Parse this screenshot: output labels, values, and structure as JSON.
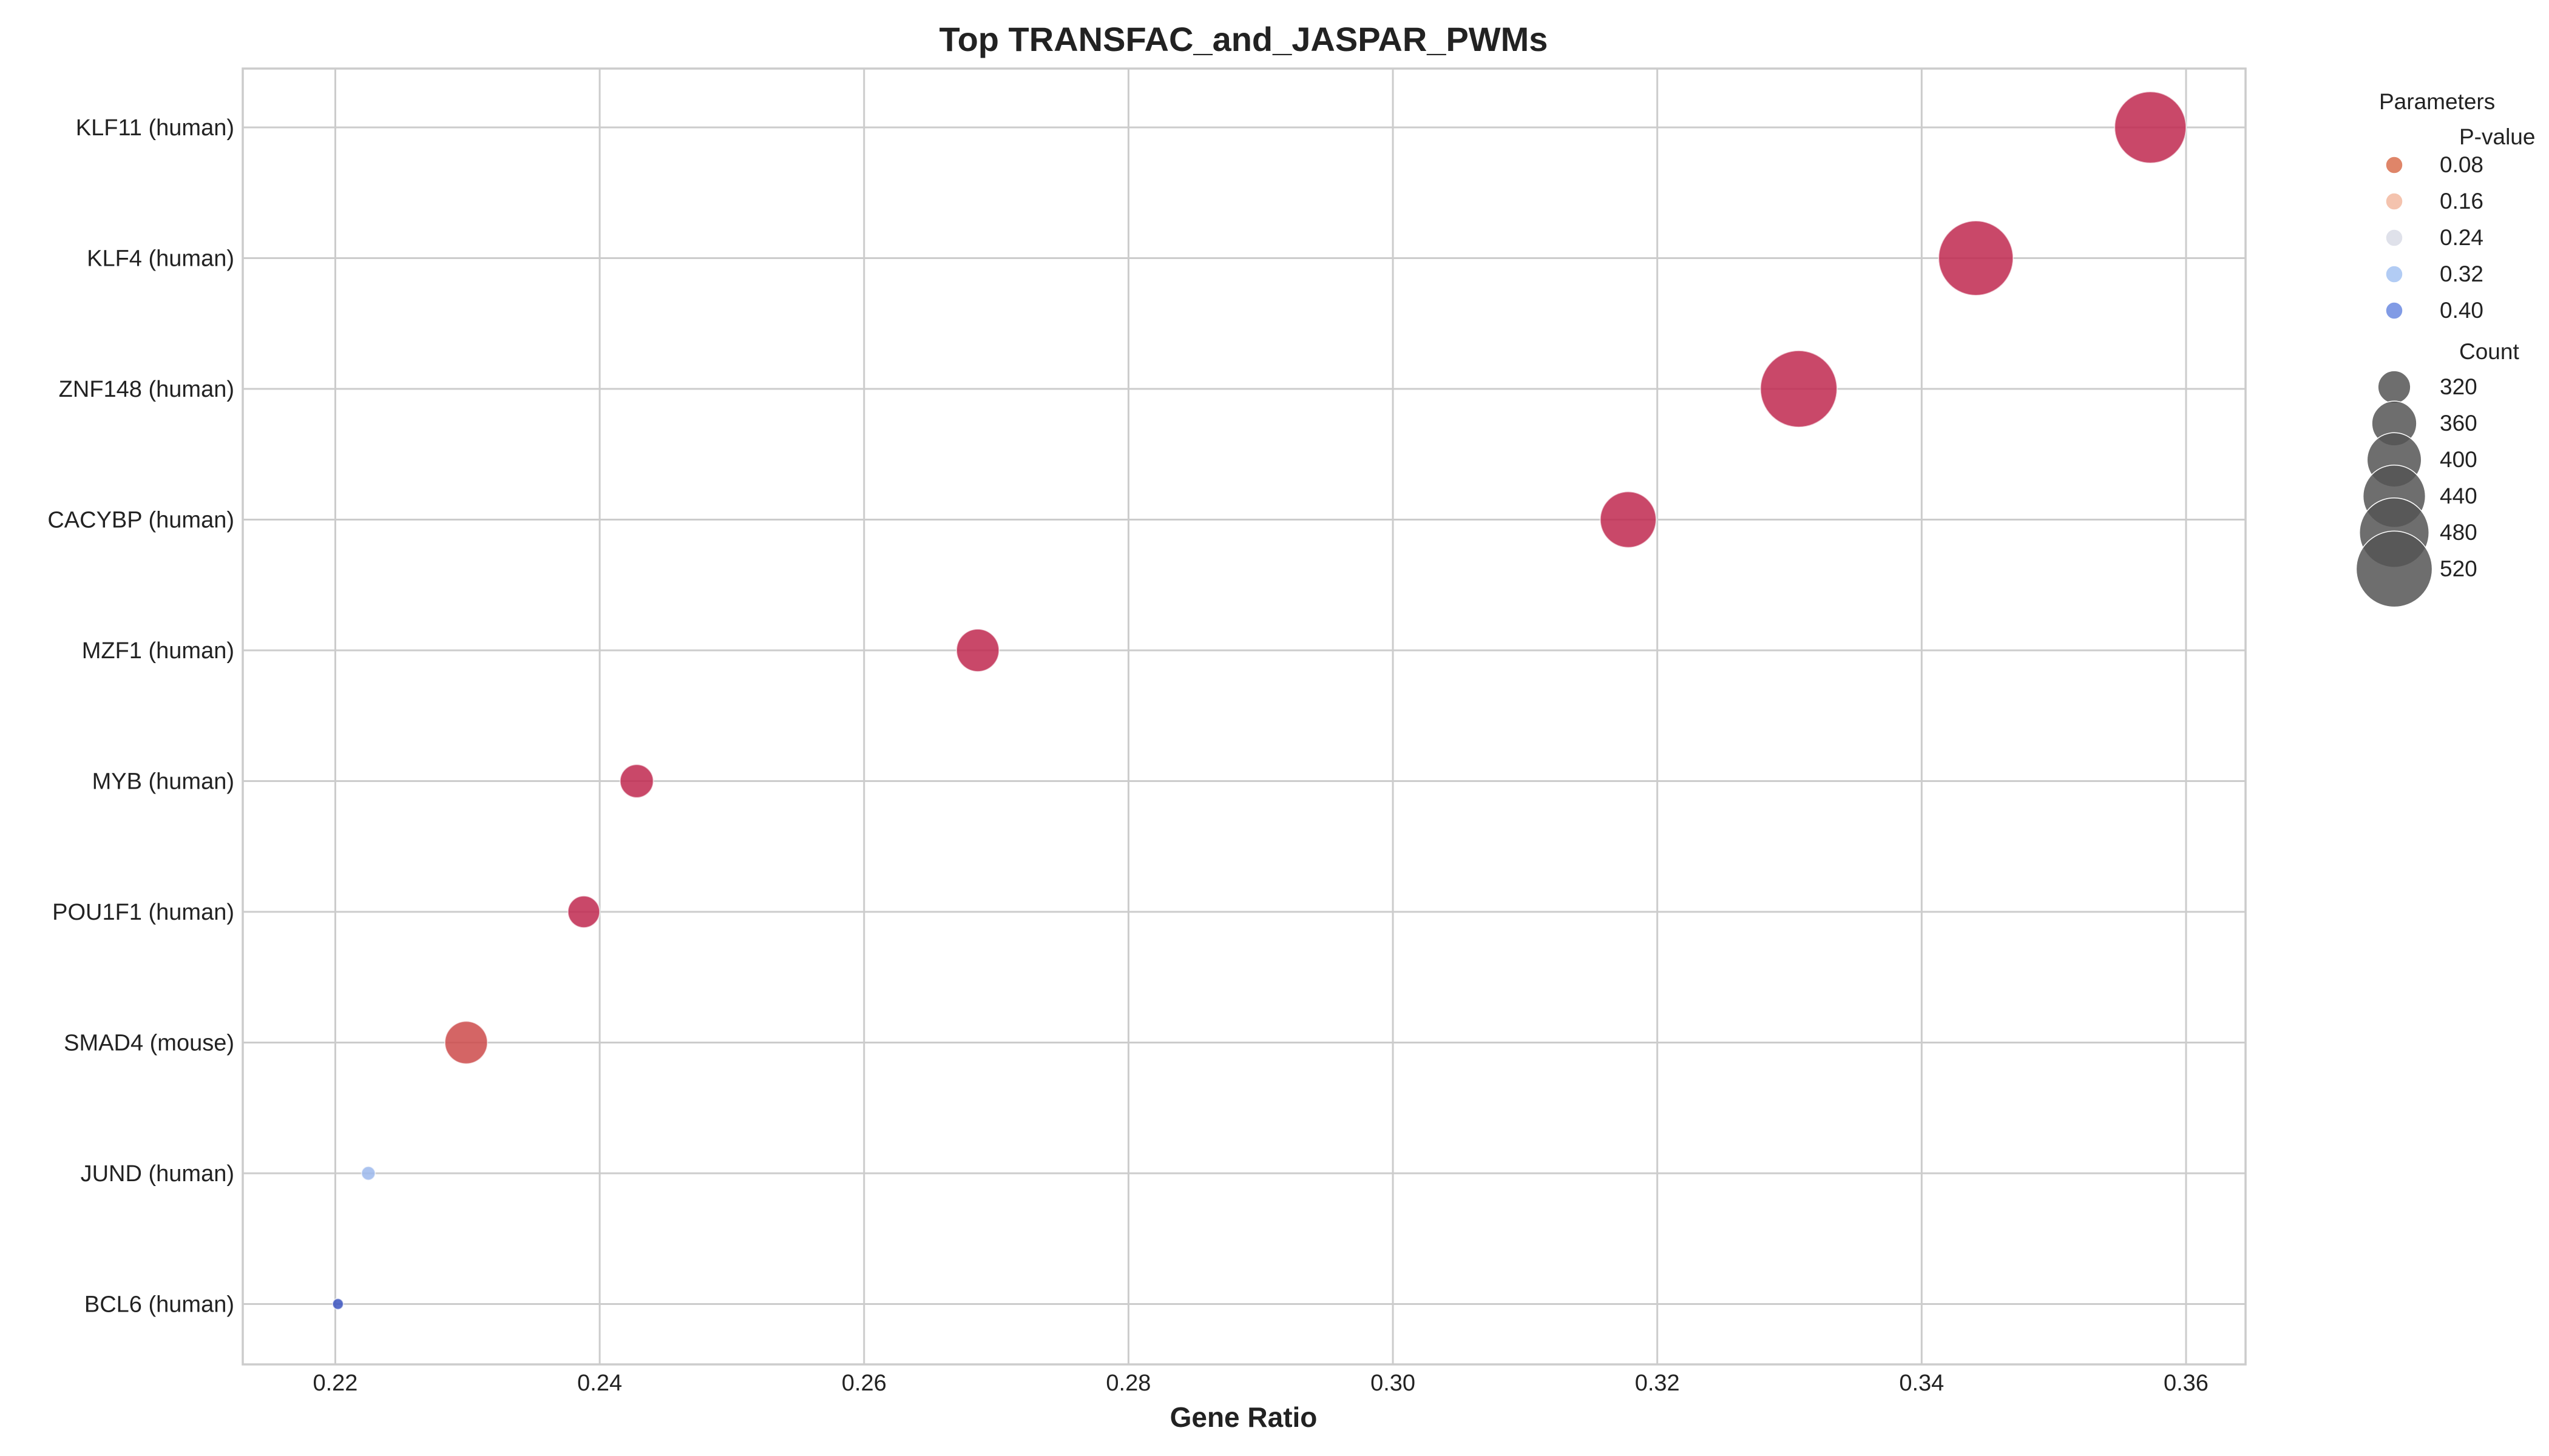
{
  "chart_data": {
    "type": "scatter",
    "title": "Top TRANSFAC_and_JASPAR_PWMs",
    "xlabel": "Gene Ratio",
    "ylabel": "",
    "xlim": [
      0.213,
      0.3645
    ],
    "xticks": [
      "0.22",
      "0.24",
      "0.26",
      "0.28",
      "0.30",
      "0.32",
      "0.34",
      "0.36"
    ],
    "xtick_values": [
      0.22,
      0.24,
      0.26,
      0.28,
      0.3,
      0.32,
      0.34,
      0.36
    ],
    "grid": true,
    "categories": [
      "KLF11 (human)",
      "KLF4 (human)",
      "ZNF148 (human)",
      "CACYBP (human)",
      "MZF1 (human)",
      "MYB (human)",
      "POU1F1 (human)",
      "SMAD4 (mouse)",
      "JUND (human)",
      "BCL6 (human)"
    ],
    "points": [
      {
        "term": "KLF11 (human)",
        "gene_ratio": 0.3573,
        "p_value": 0.0001,
        "count": 492,
        "color": "#c0284f"
      },
      {
        "term": "KLF4 (human)",
        "gene_ratio": 0.3441,
        "p_value": 0.0002,
        "count": 511,
        "color": "#c0284f"
      },
      {
        "term": "ZNF148 (human)",
        "gene_ratio": 0.3307,
        "p_value": 0.0002,
        "count": 524,
        "color": "#c0284f"
      },
      {
        "term": "CACYBP (human)",
        "gene_ratio": 0.3178,
        "p_value": 0.001,
        "count": 408,
        "color": "#c0284f"
      },
      {
        "term": "MZF1 (human)",
        "gene_ratio": 0.2686,
        "p_value": 0.01,
        "count": 352,
        "color": "#c0284f"
      },
      {
        "term": "MYB (human)",
        "gene_ratio": 0.2428,
        "p_value": 0.015,
        "count": 322,
        "color": "#c0284f"
      },
      {
        "term": "POU1F1 (human)",
        "gene_ratio": 0.2388,
        "p_value": 0.02,
        "count": 318,
        "color": "#c0284f"
      },
      {
        "term": "SMAD4 (mouse)",
        "gene_ratio": 0.2299,
        "p_value": 0.05,
        "count": 352,
        "color": "#cc4a4a"
      },
      {
        "term": "JUND (human)",
        "gene_ratio": 0.2225,
        "p_value": 0.33,
        "count": 283,
        "color": "#9cb8ec"
      },
      {
        "term": "BCL6 (human)",
        "gene_ratio": 0.2202,
        "p_value": 0.45,
        "count": 280,
        "color": "#3b54c0"
      }
    ],
    "legend": {
      "title": "Parameters",
      "placement": "outside-right",
      "pvalue_header": "P-value",
      "pvalue_entries": [
        {
          "label": "0.08",
          "color": "#d9704f"
        },
        {
          "label": "0.16",
          "color": "#f2b8a0"
        },
        {
          "label": "0.24",
          "color": "#d9dce6"
        },
        {
          "label": "0.32",
          "color": "#a5c3f2"
        },
        {
          "label": "0.40",
          "color": "#6b8ae0"
        }
      ],
      "count_header": "Count",
      "count_entries": [
        {
          "label": "320",
          "count": 320
        },
        {
          "label": "360",
          "count": 360
        },
        {
          "label": "400",
          "count": 400
        },
        {
          "label": "440",
          "count": 440
        },
        {
          "label": "480",
          "count": 480
        },
        {
          "label": "520",
          "count": 520
        }
      ],
      "count_color": "#555555"
    }
  }
}
